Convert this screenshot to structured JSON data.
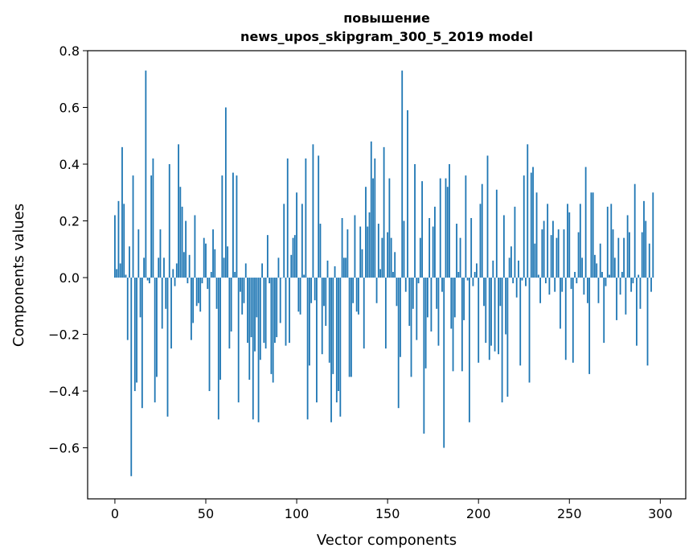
{
  "chart_data": {
    "type": "bar",
    "title_line1": "повышение",
    "title_line2": "news_upos_skipgram_300_5_2019 model",
    "xlabel": "Vector components",
    "ylabel": "Components values",
    "xlim": [
      -15,
      314
    ],
    "ylim": [
      -0.78,
      0.8
    ],
    "xticks": [
      0,
      50,
      100,
      150,
      200,
      250,
      300
    ],
    "yticks": [
      -0.6,
      -0.4,
      -0.2,
      0.0,
      0.2,
      0.4,
      0.6,
      0.8
    ],
    "ytick_labels": [
      "−0.6",
      "−0.4",
      "−0.2",
      "0.0",
      "0.2",
      "0.4",
      "0.6",
      "0.8"
    ],
    "xtick_labels": [
      "0",
      "50",
      "100",
      "150",
      "200",
      "250",
      "300"
    ],
    "bar_color": "#1f77b4",
    "grid": false,
    "values": [
      0.22,
      0.03,
      0.27,
      0.05,
      0.46,
      0.26,
      0.01,
      -0.22,
      0.11,
      -0.7,
      0.36,
      -0.4,
      -0.37,
      0.17,
      -0.14,
      -0.46,
      0.07,
      0.73,
      -0.01,
      -0.02,
      0.36,
      0.42,
      -0.44,
      -0.35,
      0.07,
      0.17,
      -0.18,
      0.07,
      -0.11,
      -0.49,
      0.4,
      -0.25,
      0.03,
      -0.03,
      0.05,
      0.47,
      0.32,
      0.25,
      0.09,
      0.2,
      -0.02,
      0.08,
      -0.22,
      -0.16,
      0.22,
      -0.1,
      -0.09,
      -0.12,
      -0.02,
      0.14,
      0.12,
      -0.04,
      -0.4,
      0.02,
      0.17,
      0.1,
      -0.11,
      -0.5,
      -0.36,
      0.36,
      0.07,
      0.6,
      0.11,
      -0.25,
      -0.19,
      0.37,
      0.02,
      0.36,
      -0.44,
      -0.05,
      -0.13,
      -0.09,
      0.05,
      -0.23,
      -0.36,
      -0.21,
      -0.5,
      -0.26,
      -0.14,
      -0.51,
      -0.29,
      0.05,
      -0.23,
      -0.25,
      0.15,
      -0.02,
      -0.34,
      -0.37,
      -0.23,
      -0.21,
      0.07,
      -0.16,
      0.0,
      0.26,
      -0.24,
      0.42,
      -0.23,
      0.08,
      0.14,
      0.15,
      0.3,
      -0.12,
      -0.13,
      0.26,
      0.01,
      0.42,
      -0.5,
      -0.31,
      -0.09,
      0.47,
      -0.08,
      -0.44,
      0.43,
      0.19,
      -0.27,
      -0.1,
      -0.17,
      0.06,
      -0.3,
      -0.51,
      -0.34,
      0.04,
      -0.44,
      -0.4,
      -0.49,
      0.21,
      0.07,
      0.07,
      0.17,
      -0.35,
      -0.35,
      -0.09,
      0.22,
      -0.12,
      -0.13,
      0.18,
      0.1,
      -0.25,
      0.32,
      0.18,
      0.23,
      0.48,
      0.35,
      0.42,
      -0.09,
      0.19,
      0.03,
      0.14,
      0.46,
      -0.25,
      0.16,
      0.35,
      0.14,
      0.02,
      0.09,
      -0.1,
      -0.46,
      -0.28,
      0.73,
      0.2,
      -0.05,
      0.59,
      -0.17,
      -0.35,
      -0.11,
      0.4,
      -0.22,
      -0.02,
      0.14,
      0.34,
      -0.55,
      -0.32,
      -0.14,
      0.21,
      -0.19,
      0.18,
      0.25,
      -0.11,
      -0.24,
      0.35,
      -0.05,
      -0.6,
      0.35,
      0.32,
      0.4,
      -0.18,
      -0.33,
      -0.14,
      0.19,
      0.02,
      0.14,
      -0.33,
      -0.15,
      0.36,
      -0.01,
      -0.51,
      0.21,
      -0.03,
      0.02,
      0.05,
      -0.3,
      0.26,
      0.33,
      -0.1,
      -0.23,
      0.43,
      -0.29,
      -0.24,
      0.06,
      -0.26,
      0.31,
      -0.27,
      -0.1,
      -0.44,
      0.22,
      -0.2,
      -0.42,
      0.07,
      0.11,
      -0.02,
      0.25,
      -0.07,
      0.06,
      -0.31,
      -0.01,
      0.36,
      -0.03,
      0.47,
      -0.37,
      0.37,
      0.39,
      0.12,
      0.3,
      0.01,
      -0.09,
      0.17,
      0.2,
      -0.02,
      0.26,
      -0.06,
      0.15,
      0.2,
      -0.05,
      0.14,
      0.17,
      -0.18,
      -0.05,
      0.17,
      -0.29,
      0.26,
      0.23,
      -0.04,
      -0.3,
      0.02,
      -0.02,
      0.16,
      0.26,
      0.07,
      -0.06,
      0.39,
      -0.09,
      -0.34,
      0.3,
      0.3,
      0.08,
      0.05,
      -0.09,
      0.12,
      0.02,
      -0.23,
      -0.03,
      0.25,
      0.01,
      0.26,
      0.17,
      0.07,
      -0.15,
      0.14,
      -0.06,
      0.02,
      0.14,
      -0.13,
      0.22,
      0.16,
      -0.05,
      -0.02,
      0.33,
      -0.24,
      0.01,
      -0.11,
      0.16,
      0.27,
      0.2,
      -0.31,
      0.12,
      -0.05,
      0.3
    ]
  }
}
